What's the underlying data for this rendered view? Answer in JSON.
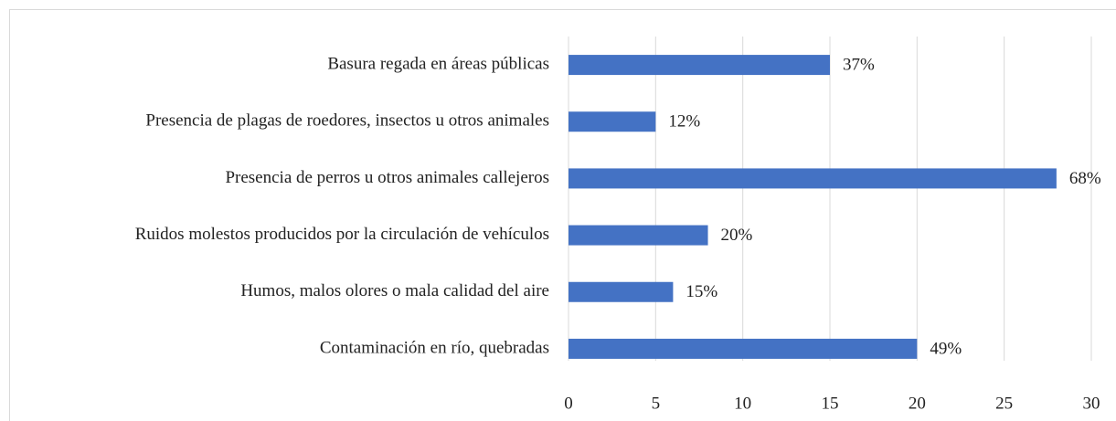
{
  "chart_data": {
    "type": "barh",
    "categories": [
      "Basura regada en áreas públicas",
      "Presencia de plagas de roedores, insectos u otros animales",
      "Presencia de perros u otros animales callejeros",
      "Ruidos molestos producidos por la circulación de vehículos",
      "Humos, malos olores o mala calidad del aire",
      "Contaminación en río, quebradas"
    ],
    "values": [
      15,
      5,
      28,
      8,
      6,
      20
    ],
    "value_labels": [
      "37%",
      "12%",
      "68%",
      "20%",
      "15%",
      "49%"
    ],
    "color": "#4472c4",
    "xlim": [
      0,
      30
    ],
    "xticks": [
      0,
      5,
      10,
      15,
      20,
      25,
      30
    ],
    "grid": true
  }
}
